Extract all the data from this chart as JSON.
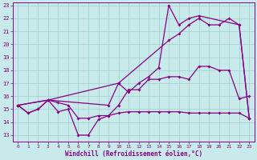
{
  "xlabel": "Windchill (Refroidissement éolien,°C)",
  "xlim": [
    -0.5,
    23.5
  ],
  "ylim": [
    12.5,
    23.2
  ],
  "yticks": [
    13,
    14,
    15,
    16,
    17,
    18,
    19,
    20,
    21,
    22,
    23
  ],
  "xticks": [
    0,
    1,
    2,
    3,
    4,
    5,
    6,
    7,
    8,
    9,
    10,
    11,
    12,
    13,
    14,
    15,
    16,
    17,
    18,
    19,
    20,
    21,
    22,
    23
  ],
  "bg_color": "#c8eaea",
  "line_color": "#880088",
  "grid_color": "#9ecece",
  "line1_x": [
    0,
    1,
    2,
    3,
    4,
    5,
    6,
    7,
    8,
    9,
    10,
    11,
    12,
    13,
    14,
    15,
    16,
    17,
    18,
    19,
    20,
    21,
    22,
    23
  ],
  "line1_y": [
    15.3,
    14.7,
    15.0,
    15.7,
    14.8,
    15.0,
    13.0,
    13.0,
    14.2,
    14.5,
    15.3,
    16.5,
    16.5,
    17.3,
    17.3,
    17.5,
    17.5,
    17.3,
    18.3,
    18.3,
    18.0,
    18.0,
    15.8,
    16.0
  ],
  "line2_x": [
    0,
    1,
    2,
    3,
    4,
    5,
    6,
    7,
    8,
    9,
    10,
    11,
    12,
    13,
    14,
    15,
    16,
    17,
    18,
    19,
    20,
    21,
    22,
    23
  ],
  "line2_y": [
    15.3,
    14.7,
    15.0,
    15.7,
    15.5,
    15.3,
    14.3,
    14.3,
    14.5,
    14.5,
    14.7,
    14.8,
    14.8,
    14.8,
    14.8,
    14.8,
    14.8,
    14.7,
    14.7,
    14.7,
    14.7,
    14.7,
    14.7,
    14.3
  ],
  "line3_x": [
    0,
    3,
    9,
    10,
    11,
    12,
    13,
    14,
    15,
    16,
    17,
    18,
    22,
    23
  ],
  "line3_y": [
    15.3,
    15.7,
    15.3,
    17.0,
    16.3,
    17.0,
    17.5,
    18.2,
    23.0,
    21.5,
    22.0,
    22.2,
    21.5,
    14.3
  ],
  "line4_x": [
    0,
    3,
    10,
    15,
    16,
    17,
    18,
    19,
    20,
    21,
    22,
    23
  ],
  "line4_y": [
    15.3,
    15.7,
    17.0,
    20.3,
    20.8,
    21.5,
    22.0,
    21.5,
    21.5,
    22.0,
    21.5,
    14.3
  ]
}
